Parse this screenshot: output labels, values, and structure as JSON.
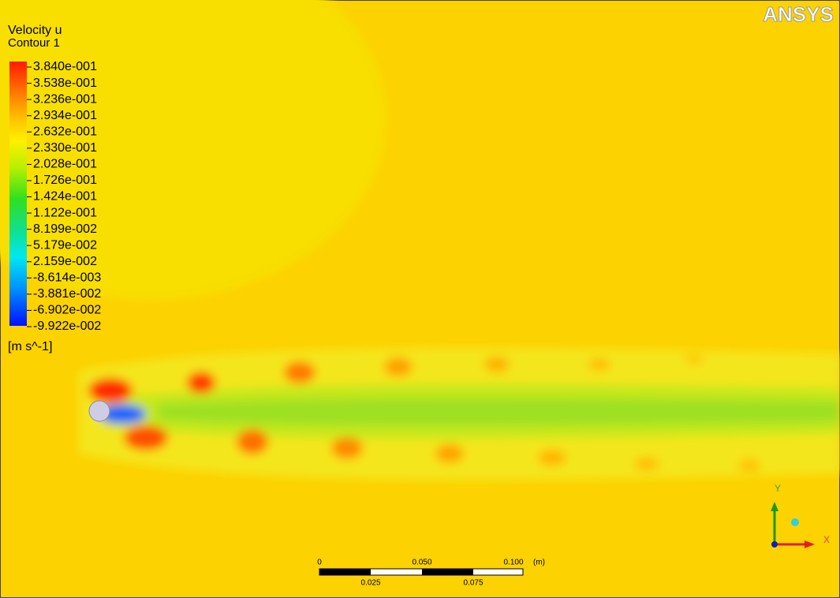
{
  "logo": "ANSYS",
  "legend": {
    "title": "Velocity u",
    "subtitle": "Contour 1",
    "levels": [
      "3.840e-001",
      "3.538e-001",
      "3.236e-001",
      "2.934e-001",
      "2.632e-001",
      "2.330e-001",
      "2.028e-001",
      "1.726e-001",
      "1.424e-001",
      "1.122e-001",
      "8.199e-002",
      "5.179e-002",
      "2.159e-002",
      "-8.614e-003",
      "-3.881e-002",
      "-6.902e-002",
      "-9.922e-002"
    ],
    "unit": "[m s^-1]"
  },
  "scale_bar": {
    "top_labels": [
      "0",
      "0.050",
      "0.100"
    ],
    "unit": "(m)",
    "bottom_labels": [
      "0.025",
      "0.075"
    ]
  },
  "triad": {
    "y_label": "Y",
    "x_label": "X"
  }
}
